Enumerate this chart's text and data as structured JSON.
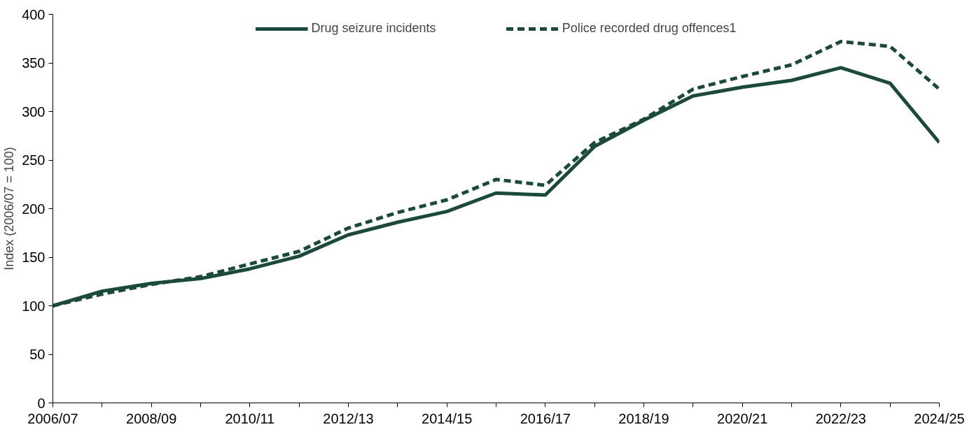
{
  "chart_data": {
    "type": "line",
    "ylabel": "Index (2006/07 = 100)",
    "categories": [
      "2006/07",
      null,
      "2008/09",
      null,
      "2010/11",
      null,
      "2012/13",
      null,
      "2014/15",
      null,
      "2016/17",
      null,
      "2018/19",
      null,
      "2020/21",
      null,
      "2022/23",
      null,
      "2024/25"
    ],
    "series": [
      {
        "name": "Drug seizure incidents",
        "color": "#1b4a3c",
        "line_style": "solid",
        "values": [
          100,
          115,
          123,
          128,
          138,
          151,
          173,
          186,
          197,
          216,
          214,
          264,
          291,
          316,
          325,
          332,
          345,
          329,
          268
        ]
      },
      {
        "name": "Police recorded drug offences1",
        "color": "#1b4a3c",
        "line_style": "dashed",
        "values": [
          100,
          112,
          122,
          130,
          143,
          156,
          180,
          196,
          209,
          230,
          224,
          268,
          292,
          323,
          336,
          348,
          372,
          367,
          323
        ]
      }
    ],
    "ylim": [
      0,
      400
    ],
    "yticks": [
      0,
      50,
      100,
      150,
      200,
      250,
      300,
      350,
      400
    ],
    "grid": false,
    "legend": "top",
    "marker": "none"
  }
}
